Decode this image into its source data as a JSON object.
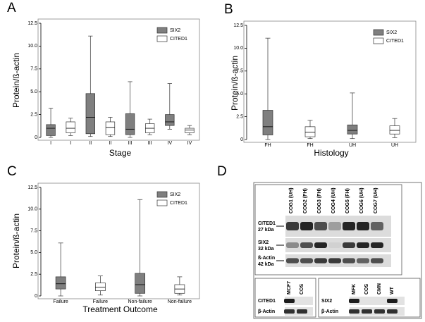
{
  "chart_data": [
    {
      "type": "box",
      "panel": "A",
      "xlabel": "Stage",
      "ylabel": "Protein/ß-actin",
      "categories": [
        "I",
        "I",
        "II",
        "II",
        "III",
        "III",
        "IV",
        "IV"
      ],
      "ylim": [
        0,
        12.5
      ],
      "yticks": [
        0,
        2.5,
        {
          "value": 5,
          "label": "5.0"
        },
        7.5,
        {
          "value": 10,
          "label": "10.0"
        },
        12.5
      ],
      "legend": "upper right",
      "series": [
        {
          "name": "SIX2",
          "color": "#7f7f7f",
          "values": [
            {
              "min": 0,
              "q1": 0.2,
              "median": 1.0,
              "q3": 1.4,
              "max": 3.2
            },
            null,
            {
              "min": 0.1,
              "q1": 0.4,
              "median": 2.2,
              "q3": 4.8,
              "max": 11.1
            },
            null,
            {
              "min": 0,
              "q1": 0.3,
              "median": 0.9,
              "q3": 2.6,
              "max": 6.1
            },
            null,
            {
              "min": 0.9,
              "q1": 1.3,
              "median": 1.7,
              "q3": 2.5,
              "max": 5.9
            },
            null
          ]
        },
        {
          "name": "CITED1",
          "color": "#ffffff",
          "values": [
            null,
            {
              "min": 0.2,
              "q1": 0.5,
              "median": 1.0,
              "q3": 1.7,
              "max": 2.1
            },
            null,
            {
              "min": 0.1,
              "q1": 0.3,
              "median": 1.1,
              "q3": 1.7,
              "max": 2.2
            },
            null,
            {
              "min": 0.3,
              "q1": 0.5,
              "median": 1.0,
              "q3": 1.5,
              "max": 2.0
            },
            null,
            {
              "min": 0.3,
              "q1": 0.5,
              "median": 0.8,
              "q3": 1.0,
              "max": 1.3
            }
          ]
        }
      ]
    },
    {
      "type": "box",
      "panel": "B",
      "xlabel": "Histology",
      "ylabel": "Protein/ß-actin",
      "categories": [
        "FH",
        "FH",
        "UH",
        "UH"
      ],
      "ylim": [
        0,
        12.5
      ],
      "yticks": [
        0,
        2.5,
        {
          "value": 5,
          "label": "5.0"
        },
        7.5,
        {
          "value": 10,
          "label": "10.0"
        },
        12.5
      ],
      "legend": "upper right",
      "series": [
        {
          "name": "SIX2",
          "color": "#7f7f7f",
          "values": [
            {
              "min": 0,
              "q1": 0.5,
              "median": 1.4,
              "q3": 3.2,
              "max": 11.1
            },
            null,
            {
              "min": 0.1,
              "q1": 0.6,
              "median": 1.0,
              "q3": 1.6,
              "max": 5.1
            },
            null
          ]
        },
        {
          "name": "CITED1",
          "color": "#ffffff",
          "values": [
            null,
            {
              "min": 0.1,
              "q1": 0.3,
              "median": 0.8,
              "q3": 1.4,
              "max": 2.1
            },
            null,
            {
              "min": 0.2,
              "q1": 0.6,
              "median": 1.0,
              "q3": 1.5,
              "max": 2.3
            }
          ]
        }
      ]
    },
    {
      "type": "box",
      "panel": "C",
      "xlabel": "Treatment Outcome",
      "ylabel": "Protein/ß-actin",
      "categories": [
        "Failure",
        "Failure",
        "Non-failure",
        "Non-failure"
      ],
      "ylim": [
        0,
        12.5
      ],
      "yticks": [
        0,
        2.5,
        {
          "value": 5,
          "label": "5.0"
        },
        7.5,
        {
          "value": 10,
          "label": "10.0"
        },
        12.5
      ],
      "legend": "upper right",
      "series": [
        {
          "name": "SIX2",
          "color": "#7f7f7f",
          "values": [
            {
              "min": 0,
              "q1": 0.8,
              "median": 1.4,
              "q3": 2.2,
              "max": 6.1
            },
            null,
            {
              "min": 0,
              "q1": 0.3,
              "median": 1.3,
              "q3": 2.6,
              "max": 11.1
            },
            null
          ]
        },
        {
          "name": "CITED1",
          "color": "#ffffff",
          "values": [
            null,
            {
              "min": 0.1,
              "q1": 0.6,
              "median": 1.0,
              "q3": 1.5,
              "max": 2.3
            },
            null,
            {
              "min": 0.1,
              "q1": 0.3,
              "median": 0.8,
              "q3": 1.3,
              "max": 2.2
            }
          ]
        }
      ]
    }
  ],
  "blot": {
    "panel": "D",
    "lanes": [
      "COG1 (UH)",
      "COG2 (FH)",
      "COG3 (FH)",
      "COG4 (UH)",
      "COG5 (FH)",
      "COG6 (UH)",
      "COG7 (UH)"
    ],
    "rows": [
      {
        "name": "CITED1",
        "size": "27 kDa"
      },
      {
        "name": "SIX2",
        "size": "32 kDa"
      },
      {
        "name": "ß-Actin",
        "size": "42 kDa"
      }
    ],
    "inset_left": {
      "lanes": [
        "MCF7",
        "COS"
      ],
      "rows": [
        "CITED1",
        "β-Actin"
      ]
    },
    "inset_right": {
      "lanes": [
        "MFK",
        "COS",
        "CMN",
        "WT"
      ],
      "rows": [
        "SIX2",
        "β-Actin"
      ]
    }
  }
}
